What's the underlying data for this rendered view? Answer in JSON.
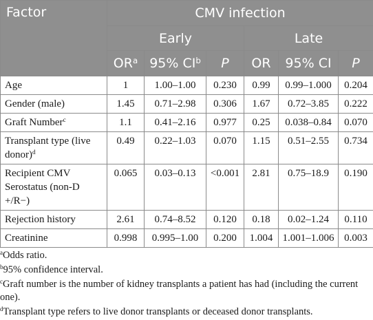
{
  "header": {
    "factor": "Factor",
    "group": "CMV infection",
    "early": "Early",
    "late": "Late",
    "cols": {
      "or": "OR",
      "or_sup": "a",
      "ci": "95% CI",
      "ci_sup": "b",
      "p": "P",
      "or_late": "OR",
      "ci_late": "95% CI",
      "p_late": "P"
    }
  },
  "rows": [
    {
      "factor": "Age",
      "sup": "",
      "e_or": "1",
      "e_ci": "1.00–1.00",
      "e_p": "0.230",
      "l_or": "0.99",
      "l_ci": "0.99–1.000",
      "l_p": "0.204"
    },
    {
      "factor": "Gender (male)",
      "sup": "",
      "e_or": "1.45",
      "e_ci": "0.71–2.98",
      "e_p": "0.306",
      "l_or": "1.67",
      "l_ci": "0.72–3.85",
      "l_p": "0.222"
    },
    {
      "factor": "Graft Number",
      "sup": "c",
      "e_or": "1.1",
      "e_ci": "0.41–2.16",
      "e_p": "0.977",
      "l_or": "0.25",
      "l_ci": "0.038–0.84",
      "l_p": "0.070"
    },
    {
      "factor": "Transplant type (live donor)",
      "sup": "d",
      "e_or": "0.49",
      "e_ci": "0.22–1.03",
      "e_p": "0.070",
      "l_or": "1.15",
      "l_ci": "0.51–2.55",
      "l_p": "0.734"
    },
    {
      "factor": "Recipient CMV Serostatus (non-D +/R−)",
      "sup": "",
      "e_or": "0.065",
      "e_ci": "0.03–0.13",
      "e_p": "<0.001",
      "l_or": "2.81",
      "l_ci": "0.75–18.9",
      "l_p": "0.190"
    },
    {
      "factor": "Rejection history",
      "sup": "",
      "e_or": "2.61",
      "e_ci": "0.74–8.52",
      "e_p": "0.120",
      "l_or": "0.18",
      "l_ci": "0.02–1.24",
      "l_p": "0.110"
    },
    {
      "factor": "Creatinine",
      "sup": "",
      "e_or": "0.998",
      "e_ci": "0.995–1.00",
      "e_p": "0.200",
      "l_or": "1.004",
      "l_ci": "1.001–1.006",
      "l_p": "0.003"
    }
  ],
  "footnotes": [
    {
      "mark": "a",
      "text": "Odds ratio."
    },
    {
      "mark": "b",
      "text": "95% confidence interval."
    },
    {
      "mark": "c",
      "text": "Graft number is the number of kidney transplants a patient has had (including the current one)."
    },
    {
      "mark": "d",
      "text": "Transplant type refers to live donor transplants or deceased donor transplants."
    }
  ]
}
